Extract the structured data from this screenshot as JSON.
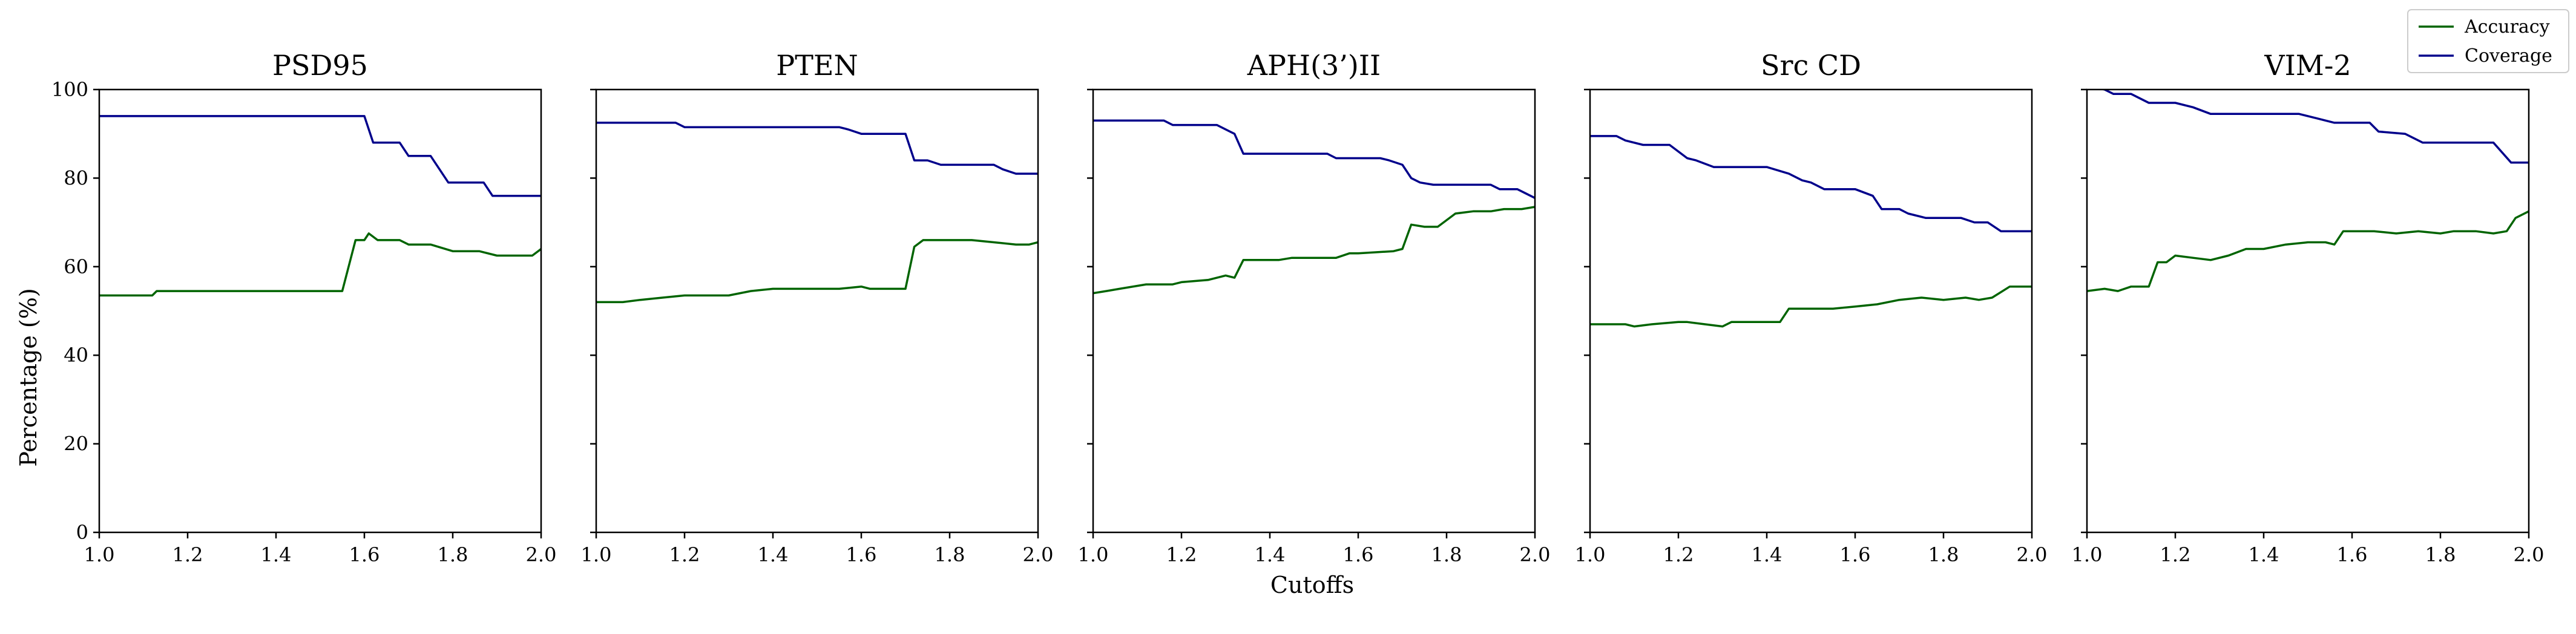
{
  "figure": {
    "xlabel": "Cutoffs",
    "ylabel": "Percentage (%)",
    "legend": {
      "placement": "top-right",
      "items": [
        {
          "label": "Accuracy",
          "color": "#006400"
        },
        {
          "label": "Coverage",
          "color": "#00008b"
        }
      ]
    }
  },
  "chart_data": [
    {
      "type": "line",
      "title": "PSD95",
      "xlim": [
        1.0,
        2.0
      ],
      "ylim": [
        0,
        100
      ],
      "xticks": [
        "1.0",
        "1.2",
        "1.4",
        "1.6",
        "1.8",
        "2.0"
      ],
      "yticks": [
        "0",
        "20",
        "40",
        "60",
        "80",
        "100"
      ],
      "grid": false,
      "series": [
        {
          "name": "Accuracy",
          "color": "#006400",
          "x": [
            1.0,
            1.12,
            1.13,
            1.54,
            1.55,
            1.58,
            1.6,
            1.61,
            1.63,
            1.68,
            1.7,
            1.75,
            1.8,
            1.86,
            1.9,
            1.98,
            2.0
          ],
          "y": [
            53.5,
            53.5,
            54.5,
            54.5,
            54.5,
            66,
            66,
            67.5,
            66,
            66,
            65,
            65,
            63.5,
            63.5,
            62.5,
            62.5,
            64
          ]
        },
        {
          "name": "Coverage",
          "color": "#00008b",
          "x": [
            1.0,
            1.6,
            1.62,
            1.68,
            1.7,
            1.75,
            1.79,
            1.81,
            1.87,
            1.89,
            2.0
          ],
          "y": [
            94,
            94,
            88,
            88,
            85,
            85,
            79,
            79,
            79,
            76,
            76
          ]
        }
      ]
    },
    {
      "type": "line",
      "title": "PTEN",
      "xlim": [
        1.0,
        2.0
      ],
      "ylim": [
        0,
        100
      ],
      "xticks": [
        "1.0",
        "1.2",
        "1.4",
        "1.6",
        "1.8",
        "2.0"
      ],
      "yticks": [
        "0",
        "20",
        "40",
        "60",
        "80",
        "100"
      ],
      "grid": false,
      "series": [
        {
          "name": "Accuracy",
          "color": "#006400",
          "x": [
            1.0,
            1.06,
            1.1,
            1.15,
            1.2,
            1.3,
            1.35,
            1.4,
            1.55,
            1.6,
            1.62,
            1.7,
            1.72,
            1.74,
            1.85,
            1.9,
            1.95,
            1.98,
            2.0
          ],
          "y": [
            52,
            52,
            52.5,
            53,
            53.5,
            53.5,
            54.5,
            55,
            55,
            55.5,
            55,
            55,
            64.5,
            66,
            66,
            65.5,
            65,
            65,
            65.5
          ]
        },
        {
          "name": "Coverage",
          "color": "#00008b",
          "x": [
            1.0,
            1.18,
            1.2,
            1.55,
            1.57,
            1.6,
            1.7,
            1.72,
            1.75,
            1.78,
            1.9,
            1.92,
            1.95,
            2.0
          ],
          "y": [
            92.5,
            92.5,
            91.5,
            91.5,
            91,
            90,
            90,
            84,
            84,
            83,
            83,
            82,
            81,
            81
          ]
        }
      ]
    },
    {
      "type": "line",
      "title": "APH(3’)II",
      "xlim": [
        1.0,
        2.0
      ],
      "ylim": [
        0,
        100
      ],
      "xticks": [
        "1.0",
        "1.2",
        "1.4",
        "1.6",
        "1.8",
        "2.0"
      ],
      "yticks": [
        "0",
        "20",
        "40",
        "60",
        "80",
        "100"
      ],
      "grid": false,
      "series": [
        {
          "name": "Accuracy",
          "color": "#006400",
          "x": [
            1.0,
            1.03,
            1.06,
            1.12,
            1.18,
            1.2,
            1.26,
            1.3,
            1.32,
            1.34,
            1.42,
            1.45,
            1.55,
            1.58,
            1.6,
            1.68,
            1.7,
            1.72,
            1.75,
            1.78,
            1.82,
            1.86,
            1.9,
            1.93,
            1.97,
            2.0
          ],
          "y": [
            54,
            54.5,
            55,
            56,
            56,
            56.5,
            57,
            58,
            57.5,
            61.5,
            61.5,
            62,
            62,
            63,
            63,
            63.5,
            64,
            69.5,
            69,
            69,
            72,
            72.5,
            72.5,
            73,
            73,
            73.5
          ]
        },
        {
          "name": "Coverage",
          "color": "#00008b",
          "x": [
            1.0,
            1.16,
            1.18,
            1.28,
            1.32,
            1.34,
            1.53,
            1.55,
            1.65,
            1.67,
            1.7,
            1.72,
            1.74,
            1.77,
            1.9,
            1.92,
            1.96,
            1.98,
            2.0
          ],
          "y": [
            93,
            93,
            92,
            92,
            90,
            85.5,
            85.5,
            84.5,
            84.5,
            84,
            83,
            80,
            79,
            78.5,
            78.5,
            77.5,
            77.5,
            76.5,
            75.5
          ]
        }
      ]
    },
    {
      "type": "line",
      "title": "Src CD",
      "xlim": [
        1.0,
        2.0
      ],
      "ylim": [
        0,
        100
      ],
      "xticks": [
        "1.0",
        "1.2",
        "1.4",
        "1.6",
        "1.8",
        "2.0"
      ],
      "yticks": [
        "0",
        "20",
        "40",
        "60",
        "80",
        "100"
      ],
      "grid": false,
      "series": [
        {
          "name": "Accuracy",
          "color": "#006400",
          "x": [
            1.0,
            1.08,
            1.1,
            1.14,
            1.2,
            1.22,
            1.26,
            1.3,
            1.32,
            1.43,
            1.45,
            1.5,
            1.55,
            1.6,
            1.65,
            1.7,
            1.75,
            1.8,
            1.85,
            1.88,
            1.91,
            1.95,
            2.0
          ],
          "y": [
            47,
            47,
            46.5,
            47,
            47.5,
            47.5,
            47,
            46.5,
            47.5,
            47.5,
            50.5,
            50.5,
            50.5,
            51,
            51.5,
            52.5,
            53,
            52.5,
            53,
            52.5,
            53,
            55.5,
            55.5
          ]
        },
        {
          "name": "Coverage",
          "color": "#00008b",
          "x": [
            1.0,
            1.06,
            1.08,
            1.12,
            1.18,
            1.22,
            1.24,
            1.28,
            1.4,
            1.45,
            1.48,
            1.5,
            1.53,
            1.6,
            1.64,
            1.66,
            1.7,
            1.72,
            1.76,
            1.84,
            1.87,
            1.9,
            1.93,
            2.0
          ],
          "y": [
            89.5,
            89.5,
            88.5,
            87.5,
            87.5,
            84.5,
            84,
            82.5,
            82.5,
            81,
            79.5,
            79,
            77.5,
            77.5,
            76,
            73,
            73,
            72,
            71,
            71,
            70,
            70,
            68,
            68
          ]
        }
      ]
    },
    {
      "type": "line",
      "title": "VIM-2",
      "xlim": [
        1.0,
        2.0
      ],
      "ylim": [
        0,
        100
      ],
      "xticks": [
        "1.0",
        "1.2",
        "1.4",
        "1.6",
        "1.8",
        "2.0"
      ],
      "yticks": [
        "0",
        "20",
        "40",
        "60",
        "80",
        "100"
      ],
      "grid": false,
      "series": [
        {
          "name": "Accuracy",
          "color": "#006400",
          "x": [
            1.0,
            1.04,
            1.07,
            1.1,
            1.14,
            1.16,
            1.18,
            1.2,
            1.24,
            1.28,
            1.32,
            1.36,
            1.4,
            1.45,
            1.5,
            1.54,
            1.56,
            1.58,
            1.65,
            1.7,
            1.75,
            1.8,
            1.83,
            1.88,
            1.92,
            1.95,
            1.97,
            2.0
          ],
          "y": [
            54.5,
            55,
            54.5,
            55.5,
            55.5,
            61,
            61,
            62.5,
            62,
            61.5,
            62.5,
            64,
            64,
            65,
            65.5,
            65.5,
            65,
            68,
            68,
            67.5,
            68,
            67.5,
            68,
            68,
            67.5,
            68,
            71,
            72.5
          ]
        },
        {
          "name": "Coverage",
          "color": "#00008b",
          "x": [
            1.0,
            1.04,
            1.06,
            1.1,
            1.14,
            1.2,
            1.24,
            1.28,
            1.48,
            1.52,
            1.56,
            1.64,
            1.66,
            1.72,
            1.76,
            1.92,
            1.96,
            2.0
          ],
          "y": [
            101,
            100,
            99,
            99,
            97,
            97,
            96,
            94.5,
            94.5,
            93.5,
            92.5,
            92.5,
            90.5,
            90,
            88,
            88,
            83.5,
            83.5
          ]
        }
      ]
    }
  ]
}
